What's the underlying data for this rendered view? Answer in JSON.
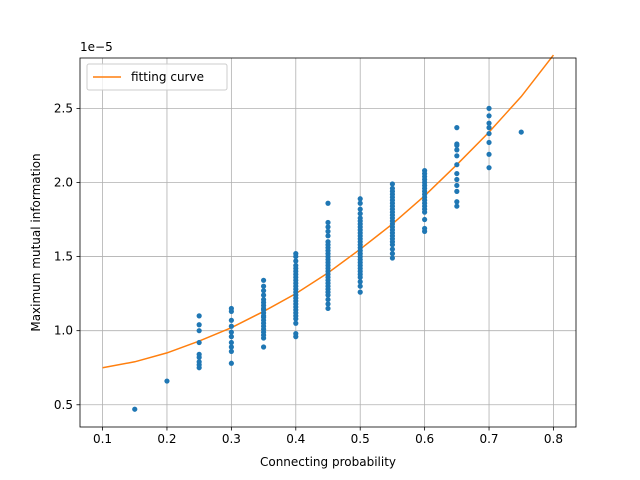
{
  "chart_data": {
    "type": "scatter",
    "xlabel": "Connecting probability",
    "ylabel": "Maximum mutual information",
    "y_offset_label": "1e−5",
    "xlim": [
      0.065,
      0.835
    ],
    "ylim": [
      0.35,
      2.84
    ],
    "x_ticks": [
      0.1,
      0.2,
      0.3,
      0.4,
      0.5,
      0.6,
      0.7,
      0.8
    ],
    "x_tick_labels": [
      "0.1",
      "0.2",
      "0.3",
      "0.4",
      "0.5",
      "0.6",
      "0.7",
      "0.8"
    ],
    "y_ticks": [
      0.5,
      1.0,
      1.5,
      2.0,
      2.5
    ],
    "y_tick_labels": [
      "0.5",
      "1.0",
      "1.5",
      "2.0",
      "2.5"
    ],
    "grid": true,
    "legend_position": "top-left",
    "colors": {
      "scatter": "#1f77b4",
      "curve": "#ff7f0e",
      "grid": "#b0b0b0"
    },
    "series": [
      {
        "kind": "scatter",
        "points": [
          [
            0.15,
            0.47
          ],
          [
            0.2,
            0.66
          ],
          [
            0.25,
            0.75
          ],
          [
            0.25,
            0.77
          ],
          [
            0.25,
            0.79
          ],
          [
            0.25,
            0.82
          ],
          [
            0.25,
            0.84
          ],
          [
            0.25,
            0.92
          ],
          [
            0.25,
            1.0
          ],
          [
            0.25,
            1.04
          ],
          [
            0.25,
            1.1
          ],
          [
            0.3,
            0.78
          ],
          [
            0.3,
            0.86
          ],
          [
            0.3,
            0.89
          ],
          [
            0.3,
            0.92
          ],
          [
            0.3,
            0.96
          ],
          [
            0.3,
            0.99
          ],
          [
            0.3,
            1.03
          ],
          [
            0.3,
            1.07
          ],
          [
            0.3,
            1.13
          ],
          [
            0.3,
            1.15
          ],
          [
            0.35,
            0.89
          ],
          [
            0.35,
            0.95
          ],
          [
            0.35,
            0.97
          ],
          [
            0.35,
            0.99
          ],
          [
            0.35,
            1.01
          ],
          [
            0.35,
            1.03
          ],
          [
            0.35,
            1.05
          ],
          [
            0.35,
            1.07
          ],
          [
            0.35,
            1.09
          ],
          [
            0.35,
            1.1
          ],
          [
            0.35,
            1.12
          ],
          [
            0.35,
            1.14
          ],
          [
            0.35,
            1.15
          ],
          [
            0.35,
            1.17
          ],
          [
            0.35,
            1.19
          ],
          [
            0.35,
            1.21
          ],
          [
            0.35,
            1.24
          ],
          [
            0.35,
            1.27
          ],
          [
            0.35,
            1.3
          ],
          [
            0.35,
            1.34
          ],
          [
            0.4,
            0.96
          ],
          [
            0.4,
            0.98
          ],
          [
            0.4,
            1.05
          ],
          [
            0.4,
            1.08
          ],
          [
            0.4,
            1.1
          ],
          [
            0.4,
            1.12
          ],
          [
            0.4,
            1.14
          ],
          [
            0.4,
            1.16
          ],
          [
            0.4,
            1.18
          ],
          [
            0.4,
            1.2
          ],
          [
            0.4,
            1.22
          ],
          [
            0.4,
            1.24
          ],
          [
            0.4,
            1.26
          ],
          [
            0.4,
            1.28
          ],
          [
            0.4,
            1.3
          ],
          [
            0.4,
            1.32
          ],
          [
            0.4,
            1.34
          ],
          [
            0.4,
            1.36
          ],
          [
            0.4,
            1.38
          ],
          [
            0.4,
            1.4
          ],
          [
            0.4,
            1.42
          ],
          [
            0.4,
            1.44
          ],
          [
            0.4,
            1.47
          ],
          [
            0.4,
            1.5
          ],
          [
            0.4,
            1.52
          ],
          [
            0.45,
            1.15
          ],
          [
            0.45,
            1.18
          ],
          [
            0.45,
            1.21
          ],
          [
            0.45,
            1.24
          ],
          [
            0.45,
            1.26
          ],
          [
            0.45,
            1.28
          ],
          [
            0.45,
            1.3
          ],
          [
            0.45,
            1.32
          ],
          [
            0.45,
            1.34
          ],
          [
            0.45,
            1.36
          ],
          [
            0.45,
            1.38
          ],
          [
            0.45,
            1.4
          ],
          [
            0.45,
            1.42
          ],
          [
            0.45,
            1.44
          ],
          [
            0.45,
            1.46
          ],
          [
            0.45,
            1.48
          ],
          [
            0.45,
            1.5
          ],
          [
            0.45,
            1.52
          ],
          [
            0.45,
            1.54
          ],
          [
            0.45,
            1.56
          ],
          [
            0.45,
            1.58
          ],
          [
            0.45,
            1.6
          ],
          [
            0.45,
            1.64
          ],
          [
            0.45,
            1.67
          ],
          [
            0.45,
            1.7
          ],
          [
            0.45,
            1.73
          ],
          [
            0.45,
            1.86
          ],
          [
            0.5,
            1.26
          ],
          [
            0.5,
            1.3
          ],
          [
            0.5,
            1.33
          ],
          [
            0.5,
            1.36
          ],
          [
            0.5,
            1.38
          ],
          [
            0.5,
            1.4
          ],
          [
            0.5,
            1.42
          ],
          [
            0.5,
            1.44
          ],
          [
            0.5,
            1.46
          ],
          [
            0.5,
            1.48
          ],
          [
            0.5,
            1.5
          ],
          [
            0.5,
            1.52
          ],
          [
            0.5,
            1.54
          ],
          [
            0.5,
            1.56
          ],
          [
            0.5,
            1.58
          ],
          [
            0.5,
            1.6
          ],
          [
            0.5,
            1.62
          ],
          [
            0.5,
            1.64
          ],
          [
            0.5,
            1.66
          ],
          [
            0.5,
            1.68
          ],
          [
            0.5,
            1.7
          ],
          [
            0.5,
            1.72
          ],
          [
            0.5,
            1.74
          ],
          [
            0.5,
            1.76
          ],
          [
            0.5,
            1.79
          ],
          [
            0.5,
            1.82
          ],
          [
            0.5,
            1.86
          ],
          [
            0.5,
            1.89
          ],
          [
            0.55,
            1.49
          ],
          [
            0.55,
            1.52
          ],
          [
            0.55,
            1.55
          ],
          [
            0.55,
            1.58
          ],
          [
            0.55,
            1.6
          ],
          [
            0.55,
            1.62
          ],
          [
            0.55,
            1.64
          ],
          [
            0.55,
            1.66
          ],
          [
            0.55,
            1.68
          ],
          [
            0.55,
            1.7
          ],
          [
            0.55,
            1.72
          ],
          [
            0.55,
            1.74
          ],
          [
            0.55,
            1.76
          ],
          [
            0.55,
            1.78
          ],
          [
            0.55,
            1.8
          ],
          [
            0.55,
            1.82
          ],
          [
            0.55,
            1.84
          ],
          [
            0.55,
            1.86
          ],
          [
            0.55,
            1.88
          ],
          [
            0.55,
            1.9
          ],
          [
            0.55,
            1.92
          ],
          [
            0.55,
            1.94
          ],
          [
            0.55,
            1.96
          ],
          [
            0.55,
            1.99
          ],
          [
            0.6,
            1.67
          ],
          [
            0.6,
            1.69
          ],
          [
            0.6,
            1.75
          ],
          [
            0.6,
            1.8
          ],
          [
            0.6,
            1.82
          ],
          [
            0.6,
            1.84
          ],
          [
            0.6,
            1.86
          ],
          [
            0.6,
            1.88
          ],
          [
            0.6,
            1.9
          ],
          [
            0.6,
            1.92
          ],
          [
            0.6,
            1.94
          ],
          [
            0.6,
            1.96
          ],
          [
            0.6,
            1.98
          ],
          [
            0.6,
            2.0
          ],
          [
            0.6,
            2.02
          ],
          [
            0.6,
            2.04
          ],
          [
            0.6,
            2.06
          ],
          [
            0.6,
            2.08
          ],
          [
            0.65,
            1.84
          ],
          [
            0.65,
            1.87
          ],
          [
            0.65,
            1.94
          ],
          [
            0.65,
            1.98
          ],
          [
            0.65,
            2.02
          ],
          [
            0.65,
            2.06
          ],
          [
            0.65,
            2.12
          ],
          [
            0.65,
            2.18
          ],
          [
            0.65,
            2.22
          ],
          [
            0.65,
            2.25
          ],
          [
            0.65,
            2.26
          ],
          [
            0.65,
            2.37
          ],
          [
            0.7,
            2.1
          ],
          [
            0.7,
            2.19
          ],
          [
            0.7,
            2.27
          ],
          [
            0.7,
            2.33
          ],
          [
            0.7,
            2.37
          ],
          [
            0.7,
            2.4
          ],
          [
            0.7,
            2.45
          ],
          [
            0.7,
            2.5
          ],
          [
            0.75,
            2.34
          ]
        ]
      },
      {
        "kind": "line",
        "name": "fitting curve",
        "x": [
          0.1,
          0.15,
          0.2,
          0.25,
          0.3,
          0.35,
          0.4,
          0.45,
          0.5,
          0.55,
          0.6,
          0.65,
          0.7,
          0.75,
          0.8
        ],
        "y": [
          0.75,
          0.79,
          0.85,
          0.93,
          1.02,
          1.13,
          1.25,
          1.39,
          1.55,
          1.72,
          1.91,
          2.12,
          2.34,
          2.58,
          2.86
        ]
      }
    ]
  }
}
